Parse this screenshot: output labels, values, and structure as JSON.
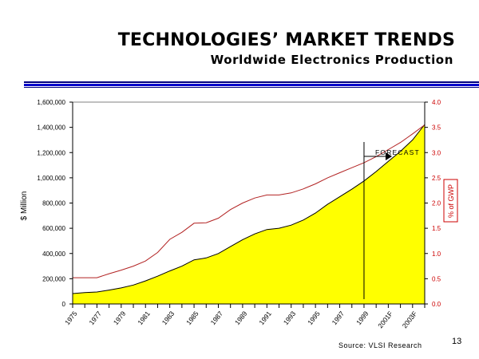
{
  "title": "TECHNOLOGIES’ MARKET TRENDS",
  "subtitle": "Worldwide Electronics Production",
  "source": "Source: VLSI Research",
  "page_number": "13",
  "colors": {
    "area_fill": "#ffff00",
    "area_line": "#000000",
    "gwp_line": "#b22222",
    "right_axis_text": "#cc0000",
    "rule": "#0000cc"
  },
  "chart_data": {
    "type": "area",
    "title": "Worldwide Electronics Production",
    "ylabel": "$ Million",
    "y2label": "% of GWP",
    "annotation": "FORECAST",
    "forecast_start": 1999,
    "ylim": [
      0,
      1600000
    ],
    "y2lim": [
      0,
      4.0
    ],
    "yticks": [
      "0",
      "200,000",
      "400,000",
      "600,000",
      "800,000",
      "1,000,000",
      "1,200,000",
      "1,400,000",
      "1,600,000"
    ],
    "y2ticks": [
      "0.0",
      "0.5",
      "1.0",
      "1.5",
      "2.0",
      "2.5",
      "3.0",
      "3.5",
      "4.0"
    ],
    "x": [
      1975,
      1976,
      1977,
      1978,
      1979,
      1980,
      1981,
      1982,
      1983,
      1984,
      1985,
      1986,
      1987,
      1988,
      1989,
      1990,
      1991,
      1992,
      1993,
      1994,
      1995,
      1996,
      1997,
      1998,
      1999,
      2000,
      2001,
      2002,
      2003,
      2004
    ],
    "xtick_labels": [
      "1975",
      "1977",
      "1979",
      "1981",
      "1983",
      "1985",
      "1987",
      "1989",
      "1991",
      "1993",
      "1995",
      "1997",
      "1999",
      "2001F",
      "2003F"
    ],
    "series": [
      {
        "name": "Electronics Production ($ Million)",
        "axis": "left",
        "style": "area",
        "values": [
          82000,
          90000,
          95000,
          110000,
          127000,
          150000,
          183000,
          220000,
          262000,
          300000,
          350000,
          365000,
          400000,
          455000,
          510000,
          555000,
          590000,
          600000,
          625000,
          665000,
          720000,
          790000,
          850000,
          910000,
          975000,
          1050000,
          1130000,
          1210000,
          1300000,
          1423000
        ]
      },
      {
        "name": "% of GWP",
        "axis": "right",
        "style": "line",
        "values": [
          0.52,
          0.52,
          0.52,
          0.6,
          0.67,
          0.75,
          0.85,
          1.02,
          1.28,
          1.42,
          1.6,
          1.61,
          1.7,
          1.87,
          2.0,
          2.1,
          2.16,
          2.16,
          2.2,
          2.28,
          2.38,
          2.5,
          2.6,
          2.7,
          2.8,
          2.92,
          3.06,
          3.2,
          3.37,
          3.55
        ]
      }
    ],
    "grid": false,
    "legend": "none"
  }
}
